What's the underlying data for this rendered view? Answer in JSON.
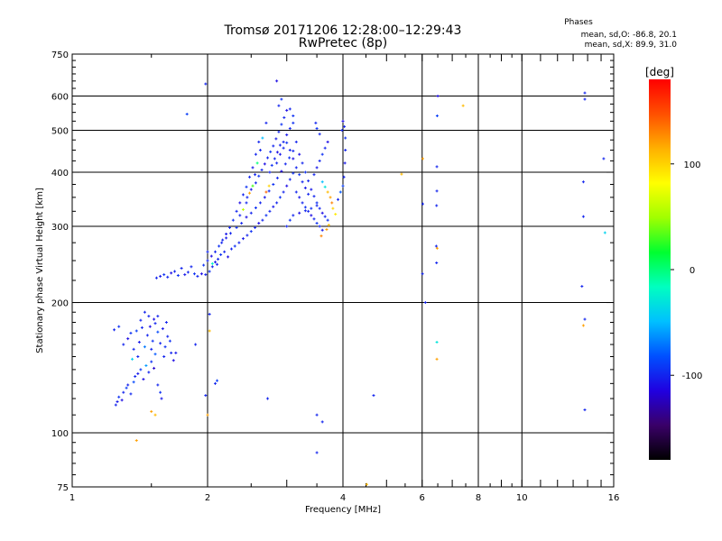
{
  "title": "Tromsø 20171206 12:28:00–12:29:43",
  "subtitle": "RwPretec (8p)",
  "phases": {
    "title": "Phases",
    "line_o": "mean, sd,O: -86.8, 20.1",
    "line_x": "mean, sd,X:  89.9, 31.0"
  },
  "colorbar": {
    "label": "[deg]",
    "ticks": [
      {
        "value": 100,
        "label": "100"
      },
      {
        "value": 0,
        "label": "0"
      },
      {
        "value": -100,
        "label": "-100"
      }
    ],
    "range": [
      -180,
      180
    ],
    "colors": [
      "#000000",
      "#3a0068",
      "#2000e0",
      "#0050ff",
      "#00c0ff",
      "#00ffc0",
      "#00ff30",
      "#a0ff00",
      "#ffff00",
      "#ffb000",
      "#ff5000",
      "#ff0000"
    ]
  },
  "chart_data": {
    "type": "scatter",
    "title": "Tromsø 20171206 12:28:00–12:29:43",
    "subtitle": "RwPretec (8p)",
    "xlabel": "Frequency [MHz]",
    "ylabel": "Stationary phase Virtual Height [km]",
    "x_scale": "log",
    "y_scale": "log",
    "xlim": [
      1,
      16
    ],
    "ylim": [
      75,
      750
    ],
    "grid": true,
    "x_ticks": [
      {
        "value": 1,
        "label": "1"
      },
      {
        "value": 2,
        "label": "2"
      },
      {
        "value": 4,
        "label": "4"
      },
      {
        "value": 6,
        "label": "6"
      },
      {
        "value": 8,
        "label": "8"
      },
      {
        "value": 10,
        "label": "10"
      },
      {
        "value": 16,
        "label": "16"
      }
    ],
    "y_ticks": [
      {
        "value": 75,
        "label": "75"
      },
      {
        "value": 100,
        "label": "100"
      },
      {
        "value": 200,
        "label": "200"
      },
      {
        "value": 300,
        "label": "300"
      },
      {
        "value": 400,
        "label": "400"
      },
      {
        "value": 500,
        "label": "500"
      },
      {
        "value": 600,
        "label": "600"
      },
      {
        "value": 750,
        "label": "750"
      }
    ],
    "x_gridlines": [
      2,
      4,
      6,
      8,
      10
    ],
    "y_gridlines": [
      100,
      200,
      300,
      400,
      500,
      600
    ],
    "color_by": "phase [deg]",
    "points": [
      [
        1.25,
        116,
        -100
      ],
      [
        1.26,
        118,
        -105
      ],
      [
        1.27,
        121,
        -95
      ],
      [
        1.29,
        119,
        -110
      ],
      [
        1.3,
        124,
        -100
      ],
      [
        1.32,
        127,
        -90
      ],
      [
        1.33,
        129,
        -102
      ],
      [
        1.35,
        123,
        -98
      ],
      [
        1.37,
        131,
        -85
      ],
      [
        1.38,
        135,
        -100
      ],
      [
        1.4,
        137,
        -105
      ],
      [
        1.42,
        140,
        -92
      ],
      [
        1.44,
        133,
        -110
      ],
      [
        1.46,
        143,
        -60
      ],
      [
        1.48,
        138,
        -100
      ],
      [
        1.5,
        146,
        -95
      ],
      [
        1.52,
        141,
        -120
      ],
      [
        1.53,
        152,
        -80
      ],
      [
        1.55,
        129,
        -100
      ],
      [
        1.57,
        124,
        -95
      ],
      [
        1.58,
        120,
        -105
      ],
      [
        1.3,
        160,
        -100
      ],
      [
        1.33,
        165,
        -110
      ],
      [
        1.35,
        170,
        -95
      ],
      [
        1.37,
        156,
        -100
      ],
      [
        1.39,
        172,
        -90
      ],
      [
        1.41,
        162,
        -105
      ],
      [
        1.43,
        175,
        -100
      ],
      [
        1.45,
        158,
        -70
      ],
      [
        1.47,
        168,
        -100
      ],
      [
        1.49,
        176,
        -110
      ],
      [
        1.51,
        163,
        -95
      ],
      [
        1.53,
        179,
        -100
      ],
      [
        1.55,
        171,
        -85
      ],
      [
        1.57,
        161,
        -100
      ],
      [
        1.59,
        174,
        -105
      ],
      [
        1.61,
        158,
        -95
      ],
      [
        1.63,
        167,
        -100
      ],
      [
        1.66,
        153,
        -100
      ],
      [
        1.68,
        147,
        -110
      ],
      [
        1.24,
        173,
        -100
      ],
      [
        1.27,
        176,
        -95
      ],
      [
        1.48,
        186,
        -100
      ],
      [
        1.52,
        183,
        -110
      ],
      [
        1.45,
        190,
        -100
      ],
      [
        1.4,
        150,
        -100
      ],
      [
        1.36,
        148,
        -40
      ],
      [
        1.5,
        156,
        -100
      ],
      [
        1.6,
        150,
        -100
      ],
      [
        1.65,
        163,
        -95
      ],
      [
        1.7,
        153,
        -105
      ],
      [
        1.42,
        182,
        -100
      ],
      [
        1.55,
        186,
        -100
      ],
      [
        1.62,
        180,
        -100
      ],
      [
        1.39,
        96,
        120
      ],
      [
        1.53,
        110,
        110
      ],
      [
        1.5,
        112,
        120
      ],
      [
        1.54,
        228,
        -100
      ],
      [
        1.57,
        230,
        -105
      ],
      [
        1.6,
        232,
        -95
      ],
      [
        1.63,
        229,
        -100
      ],
      [
        1.66,
        234,
        -110
      ],
      [
        1.69,
        236,
        -100
      ],
      [
        1.72,
        231,
        -95
      ],
      [
        1.75,
        240,
        -100
      ],
      [
        1.78,
        232,
        -105
      ],
      [
        1.81,
        235,
        -100
      ],
      [
        1.84,
        242,
        -100
      ],
      [
        1.87,
        233,
        -95
      ],
      [
        1.9,
        230,
        -100
      ],
      [
        1.94,
        233,
        -110
      ],
      [
        1.98,
        232,
        -100
      ],
      [
        2.02,
        236,
        -95
      ],
      [
        2.05,
        242,
        -100
      ],
      [
        2.08,
        248,
        -105
      ],
      [
        2.11,
        252,
        -100
      ],
      [
        2.14,
        258,
        -95
      ],
      [
        2.18,
        262,
        -100
      ],
      [
        2.22,
        255,
        -110
      ],
      [
        2.26,
        266,
        -100
      ],
      [
        2.3,
        270,
        -95
      ],
      [
        2.35,
        275,
        -100
      ],
      [
        2.4,
        281,
        -105
      ],
      [
        2.45,
        286,
        -100
      ],
      [
        2.5,
        292,
        -95
      ],
      [
        2.55,
        298,
        -100
      ],
      [
        2.6,
        305,
        -110
      ],
      [
        2.65,
        310,
        -100
      ],
      [
        2.7,
        318,
        -95
      ],
      [
        2.75,
        325,
        -100
      ],
      [
        2.8,
        333,
        -105
      ],
      [
        2.85,
        340,
        -100
      ],
      [
        2.9,
        350,
        -95
      ],
      [
        2.95,
        360,
        -100
      ],
      [
        3.0,
        372,
        -110
      ],
      [
        3.05,
        385,
        -100
      ],
      [
        3.1,
        398,
        -95
      ],
      [
        2.0,
        262,
        -100
      ],
      [
        2.05,
        246,
        -20
      ],
      [
        2.1,
        245,
        -100
      ],
      [
        2.15,
        275,
        -100
      ],
      [
        2.2,
        282,
        -105
      ],
      [
        2.25,
        289,
        -100
      ],
      [
        2.32,
        298,
        -95
      ],
      [
        2.38,
        305,
        -100
      ],
      [
        2.44,
        315,
        -110
      ],
      [
        2.5,
        322,
        -100
      ],
      [
        2.56,
        331,
        -95
      ],
      [
        2.62,
        340,
        -100
      ],
      [
        2.68,
        350,
        -105
      ],
      [
        2.74,
        362,
        -100
      ],
      [
        2.8,
        375,
        -95
      ],
      [
        2.86,
        388,
        -100
      ],
      [
        2.92,
        402,
        -110
      ],
      [
        2.98,
        418,
        -100
      ],
      [
        3.04,
        432,
        -95
      ],
      [
        3.1,
        448,
        -100
      ],
      [
        2.45,
        350,
        -100
      ],
      [
        2.5,
        365,
        -105
      ],
      [
        2.56,
        378,
        -100
      ],
      [
        2.6,
        392,
        -95
      ],
      [
        2.64,
        405,
        -100
      ],
      [
        2.68,
        418,
        -110
      ],
      [
        2.72,
        432,
        -100
      ],
      [
        2.76,
        446,
        -95
      ],
      [
        2.8,
        460,
        -100
      ],
      [
        2.84,
        478,
        -105
      ],
      [
        2.88,
        496,
        -100
      ],
      [
        2.92,
        516,
        -95
      ],
      [
        2.96,
        535,
        -100
      ],
      [
        3.0,
        556,
        -110
      ],
      [
        2.88,
        570,
        -100
      ],
      [
        2.92,
        590,
        -95
      ],
      [
        2.7,
        520,
        -100
      ],
      [
        2.65,
        480,
        -50
      ],
      [
        2.62,
        450,
        -100
      ],
      [
        2.58,
        420,
        0
      ],
      [
        2.55,
        395,
        -100
      ],
      [
        2.52,
        372,
        30
      ],
      [
        2.48,
        358,
        120
      ],
      [
        2.44,
        340,
        -100
      ],
      [
        2.4,
        328,
        60
      ],
      [
        2.36,
        318,
        -100
      ],
      [
        2.95,
        470,
        -100
      ],
      [
        3.0,
        488,
        -105
      ],
      [
        3.05,
        505,
        -100
      ],
      [
        3.1,
        520,
        -95
      ],
      [
        3.15,
        470,
        -100
      ],
      [
        3.2,
        440,
        -110
      ],
      [
        3.25,
        420,
        -100
      ],
      [
        3.3,
        400,
        -95
      ],
      [
        3.35,
        382,
        -100
      ],
      [
        3.4,
        365,
        -105
      ],
      [
        3.45,
        352,
        -100
      ],
      [
        3.5,
        340,
        -95
      ],
      [
        3.55,
        330,
        -100
      ],
      [
        3.6,
        322,
        -110
      ],
      [
        3.65,
        316,
        -100
      ],
      [
        3.7,
        310,
        -95
      ],
      [
        3.15,
        360,
        -100
      ],
      [
        3.2,
        350,
        -105
      ],
      [
        3.25,
        340,
        -100
      ],
      [
        3.3,
        332,
        -95
      ],
      [
        3.35,
        325,
        -100
      ],
      [
        3.4,
        318,
        -110
      ],
      [
        3.45,
        312,
        -100
      ],
      [
        3.5,
        305,
        -95
      ],
      [
        3.55,
        300,
        -100
      ],
      [
        3.6,
        294,
        -105
      ],
      [
        3.0,
        300,
        -100
      ],
      [
        3.05,
        310,
        -95
      ],
      [
        3.1,
        318,
        -100
      ],
      [
        3.2,
        322,
        -110
      ],
      [
        3.3,
        326,
        -100
      ],
      [
        3.4,
        330,
        -95
      ],
      [
        3.5,
        335,
        -100
      ],
      [
        3.45,
        395,
        -100
      ],
      [
        3.5,
        410,
        -105
      ],
      [
        3.55,
        425,
        -100
      ],
      [
        3.6,
        440,
        -95
      ],
      [
        3.65,
        455,
        -100
      ],
      [
        3.7,
        470,
        -110
      ],
      [
        3.55,
        490,
        -100
      ],
      [
        3.5,
        505,
        -95
      ],
      [
        3.48,
        520,
        -100
      ],
      [
        3.6,
        380,
        -50
      ],
      [
        3.65,
        370,
        -30
      ],
      [
        3.7,
        360,
        110
      ],
      [
        3.75,
        350,
        120
      ],
      [
        3.78,
        340,
        130
      ],
      [
        3.8,
        330,
        100
      ],
      [
        3.85,
        320,
        90
      ],
      [
        3.72,
        302,
        110
      ],
      [
        3.68,
        295,
        120
      ],
      [
        3.58,
        285,
        130
      ],
      [
        3.9,
        346,
        -100
      ],
      [
        3.95,
        360,
        -80
      ],
      [
        4.0,
        372,
        -90
      ],
      [
        4.02,
        390,
        -100
      ],
      [
        4.04,
        420,
        -105
      ],
      [
        4.05,
        450,
        -100
      ],
      [
        4.05,
        480,
        -95
      ],
      [
        4.03,
        510,
        -100
      ],
      [
        4.0,
        525,
        -110
      ],
      [
        3.98,
        500,
        -100
      ],
      [
        2.7,
        360,
        140
      ],
      [
        2.74,
        372,
        100
      ],
      [
        3.05,
        560,
        -100
      ],
      [
        3.1,
        540,
        -95
      ],
      [
        2.6,
        470,
        -100
      ],
      [
        2.56,
        440,
        -100
      ],
      [
        2.52,
        410,
        -105
      ],
      [
        2.48,
        390,
        -100
      ],
      [
        2.44,
        370,
        -95
      ],
      [
        2.4,
        355,
        -100
      ],
      [
        2.36,
        340,
        -110
      ],
      [
        2.32,
        325,
        -100
      ],
      [
        2.28,
        310,
        -95
      ],
      [
        2.24,
        298,
        -100
      ],
      [
        2.2,
        288,
        -105
      ],
      [
        2.16,
        279,
        -100
      ],
      [
        2.12,
        270,
        -95
      ],
      [
        2.08,
        262,
        -100
      ],
      [
        2.04,
        256,
        -110
      ],
      [
        2.0,
        250,
        -100
      ],
      [
        1.96,
        244,
        -95
      ],
      [
        2.85,
        420,
        -100
      ],
      [
        2.9,
        440,
        -105
      ],
      [
        2.95,
        455,
        -100
      ],
      [
        3.0,
        468,
        -95
      ],
      [
        3.05,
        450,
        -100
      ],
      [
        3.1,
        430,
        -110
      ],
      [
        3.15,
        410,
        -100
      ],
      [
        3.2,
        395,
        -95
      ],
      [
        3.25,
        380,
        -100
      ],
      [
        3.3,
        368,
        -105
      ],
      [
        3.35,
        356,
        -100
      ],
      [
        2.75,
        400,
        -100
      ],
      [
        2.78,
        415,
        -95
      ],
      [
        2.82,
        430,
        -100
      ],
      [
        2.86,
        445,
        -110
      ],
      [
        2.9,
        462,
        -100
      ],
      [
        1.98,
        640,
        -100
      ],
      [
        2.85,
        650,
        -110
      ],
      [
        1.8,
        545,
        -90
      ],
      [
        2.08,
        130,
        -100
      ],
      [
        2.1,
        132,
        -90
      ],
      [
        1.98,
        122,
        -100
      ],
      [
        2.02,
        188,
        -100
      ],
      [
        2.02,
        172,
        110
      ],
      [
        2.0,
        110,
        120
      ],
      [
        1.88,
        160,
        -100
      ],
      [
        2.72,
        120,
        -100
      ],
      [
        3.5,
        110,
        -100
      ],
      [
        3.6,
        106,
        -100
      ],
      [
        3.5,
        90,
        -100
      ],
      [
        4.52,
        76,
        110
      ],
      [
        4.68,
        122,
        -100
      ],
      [
        5.4,
        396,
        110
      ],
      [
        6.02,
        430,
        120
      ],
      [
        6.02,
        338,
        -100
      ],
      [
        6.01,
        233,
        -100
      ],
      [
        6.5,
        600,
        -110
      ],
      [
        6.48,
        540,
        -90
      ],
      [
        6.47,
        412,
        -100
      ],
      [
        6.47,
        362,
        -100
      ],
      [
        6.46,
        335,
        -100
      ],
      [
        6.45,
        270,
        -100
      ],
      [
        6.46,
        247,
        -100
      ],
      [
        6.48,
        267,
        120
      ],
      [
        6.47,
        162,
        -30
      ],
      [
        6.47,
        148,
        120
      ],
      [
        7.4,
        570,
        110
      ],
      [
        13.8,
        610,
        -100
      ],
      [
        13.8,
        590,
        -100
      ],
      [
        13.7,
        380,
        -100
      ],
      [
        13.7,
        316,
        -100
      ],
      [
        13.6,
        218,
        -100
      ],
      [
        13.8,
        183,
        -100
      ],
      [
        13.7,
        177,
        120
      ],
      [
        13.8,
        113,
        -100
      ],
      [
        15.2,
        430,
        -100
      ],
      [
        15.3,
        290,
        -40
      ],
      [
        6.1,
        200,
        -100
      ]
    ]
  }
}
